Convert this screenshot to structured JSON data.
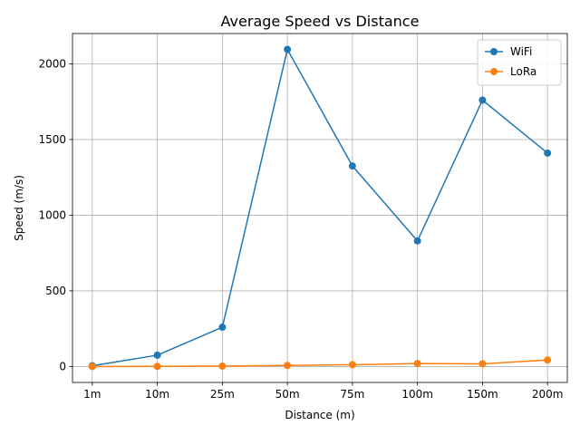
{
  "chart_data": {
    "type": "line",
    "title": "Average Speed vs Distance",
    "xlabel": "Distance (m)",
    "ylabel": "Speed (m/s)",
    "categories": [
      "1m",
      "10m",
      "25m",
      "50m",
      "75m",
      "100m",
      "150m",
      "200m"
    ],
    "ylim": [
      -105,
      2200
    ],
    "yticks": [
      0,
      500,
      1000,
      1500,
      2000
    ],
    "grid": true,
    "legend_position": "top-right",
    "series": [
      {
        "name": "WiFi",
        "color": "#1f77b4",
        "marker": "circle",
        "values": [
          5,
          75,
          260,
          2095,
          1325,
          830,
          1760,
          1410
        ]
      },
      {
        "name": "LoRa",
        "color": "#ff7f0e",
        "marker": "circle",
        "values": [
          0,
          1,
          3,
          7,
          12,
          20,
          18,
          43
        ]
      }
    ]
  }
}
